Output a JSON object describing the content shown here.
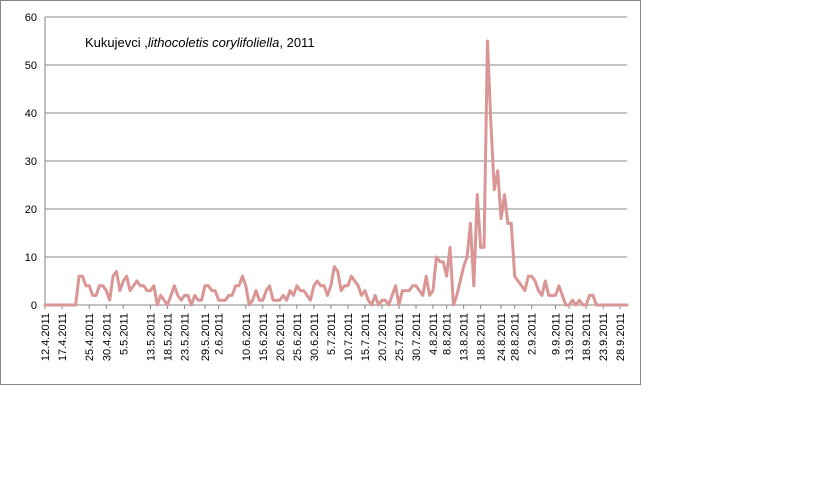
{
  "chart_data": {
    "type": "line",
    "title_parts": [
      {
        "text": "Kukujevci ,",
        "italic": false
      },
      {
        "text": "lithocoletis corylifoliella",
        "italic": true
      },
      {
        "text": ", 2011",
        "italic": false
      }
    ],
    "xlabel": "",
    "ylabel": "",
    "ylim": [
      0,
      60
    ],
    "yticks": [
      0,
      10,
      20,
      30,
      40,
      50,
      60
    ],
    "grid": "horizontal",
    "legend": "none",
    "x_start": "12.4.2011",
    "x_end": "30.9.2011",
    "x_tick_labels": [
      "12.4.2011",
      "17.4.2011",
      "25.4.2011",
      "30.4.2011",
      "5.5.2011",
      "13.5.2011",
      "18.5.2011",
      "23.5.2011",
      "29.5.2011",
      "2.6.2011",
      "10.6.2011",
      "15.6.2011",
      "20.6.2011",
      "25.6.2011",
      "30.6.2011",
      "5.7.2011",
      "10.7.2011",
      "15.7.2011",
      "20.7.2011",
      "25.7.2011",
      "30.7.2011",
      "4.8.2011",
      "8.8.2011",
      "13.8.2011",
      "18.8.2011",
      "24.8.2011",
      "28.8.2011",
      "2.9.2011",
      "9.9.2011",
      "13.9.2011",
      "18.9.2011",
      "23.9.2011",
      "28.9.2011"
    ],
    "series": [
      {
        "color": "#d99694",
        "points": [
          [
            "12.4.2011",
            0
          ],
          [
            "21.4.2011",
            0
          ],
          [
            "22.4.2011",
            6
          ],
          [
            "23.4.2011",
            6
          ],
          [
            "24.4.2011",
            4
          ],
          [
            "25.4.2011",
            4
          ],
          [
            "26.4.2011",
            2
          ],
          [
            "27.4.2011",
            2
          ],
          [
            "28.4.2011",
            4
          ],
          [
            "29.4.2011",
            4
          ],
          [
            "30.4.2011",
            3
          ],
          [
            "1.5.2011",
            1
          ],
          [
            "2.5.2011",
            6
          ],
          [
            "3.5.2011",
            7
          ],
          [
            "4.5.2011",
            3
          ],
          [
            "5.5.2011",
            5
          ],
          [
            "6.5.2011",
            6
          ],
          [
            "7.5.2011",
            3
          ],
          [
            "8.5.2011",
            4
          ],
          [
            "9.5.2011",
            5
          ],
          [
            "10.5.2011",
            4
          ],
          [
            "11.5.2011",
            4
          ],
          [
            "12.5.2011",
            3
          ],
          [
            "13.5.2011",
            3
          ],
          [
            "14.5.2011",
            4
          ],
          [
            "15.5.2011",
            0
          ],
          [
            "16.5.2011",
            2
          ],
          [
            "17.5.2011",
            1
          ],
          [
            "18.5.2011",
            0
          ],
          [
            "19.5.2011",
            2
          ],
          [
            "20.5.2011",
            4
          ],
          [
            "21.5.2011",
            2
          ],
          [
            "22.5.2011",
            1
          ],
          [
            "23.5.2011",
            2
          ],
          [
            "24.5.2011",
            2
          ],
          [
            "25.5.2011",
            0
          ],
          [
            "26.5.2011",
            2
          ],
          [
            "27.5.2011",
            1
          ],
          [
            "28.5.2011",
            1
          ],
          [
            "29.5.2011",
            4
          ],
          [
            "30.5.2011",
            4
          ],
          [
            "31.5.2011",
            3
          ],
          [
            "1.6.2011",
            3
          ],
          [
            "2.6.2011",
            1
          ],
          [
            "3.6.2011",
            1
          ],
          [
            "4.6.2011",
            1
          ],
          [
            "5.6.2011",
            2
          ],
          [
            "6.6.2011",
            2
          ],
          [
            "7.6.2011",
            4
          ],
          [
            "8.6.2011",
            4
          ],
          [
            "9.6.2011",
            6
          ],
          [
            "10.6.2011",
            4
          ],
          [
            "11.6.2011",
            0
          ],
          [
            "12.6.2011",
            1
          ],
          [
            "13.6.2011",
            3
          ],
          [
            "14.6.2011",
            1
          ],
          [
            "15.6.2011",
            1
          ],
          [
            "16.6.2011",
            3
          ],
          [
            "17.6.2011",
            4
          ],
          [
            "18.6.2011",
            1
          ],
          [
            "19.6.2011",
            1
          ],
          [
            "20.6.2011",
            1
          ],
          [
            "21.6.2011",
            2
          ],
          [
            "22.6.2011",
            1
          ],
          [
            "23.6.2011",
            3
          ],
          [
            "24.6.2011",
            2
          ],
          [
            "25.6.2011",
            4
          ],
          [
            "26.6.2011",
            3
          ],
          [
            "27.6.2011",
            3
          ],
          [
            "28.6.2011",
            2
          ],
          [
            "29.6.2011",
            1
          ],
          [
            "30.6.2011",
            4
          ],
          [
            "1.7.2011",
            5
          ],
          [
            "2.7.2011",
            4
          ],
          [
            "3.7.2011",
            4
          ],
          [
            "4.7.2011",
            2
          ],
          [
            "5.7.2011",
            4
          ],
          [
            "6.7.2011",
            8
          ],
          [
            "7.7.2011",
            7
          ],
          [
            "8.7.2011",
            3
          ],
          [
            "9.7.2011",
            4
          ],
          [
            "10.7.2011",
            4
          ],
          [
            "11.7.2011",
            6
          ],
          [
            "12.7.2011",
            5
          ],
          [
            "13.7.2011",
            4
          ],
          [
            "14.7.2011",
            2
          ],
          [
            "15.7.2011",
            3
          ],
          [
            "16.7.2011",
            1
          ],
          [
            "17.7.2011",
            0
          ],
          [
            "18.7.2011",
            2
          ],
          [
            "19.7.2011",
            0
          ],
          [
            "20.7.2011",
            1
          ],
          [
            "21.7.2011",
            1
          ],
          [
            "22.7.2011",
            0
          ],
          [
            "23.7.2011",
            2
          ],
          [
            "24.7.2011",
            4
          ],
          [
            "25.7.2011",
            0
          ],
          [
            "26.7.2011",
            3
          ],
          [
            "27.7.2011",
            3
          ],
          [
            "28.7.2011",
            3
          ],
          [
            "29.7.2011",
            4
          ],
          [
            "30.7.2011",
            4
          ],
          [
            "31.7.2011",
            3
          ],
          [
            "1.8.2011",
            2
          ],
          [
            "2.8.2011",
            6
          ],
          [
            "3.8.2011",
            2
          ],
          [
            "4.8.2011",
            3
          ],
          [
            "5.8.2011",
            10
          ],
          [
            "6.8.2011",
            9
          ],
          [
            "7.8.2011",
            9
          ],
          [
            "8.8.2011",
            6
          ],
          [
            "9.8.2011",
            12
          ],
          [
            "10.8.2011",
            0
          ],
          [
            "11.8.2011",
            2
          ],
          [
            "12.8.2011",
            5
          ],
          [
            "13.8.2011",
            8
          ],
          [
            "14.8.2011",
            10
          ],
          [
            "15.8.2011",
            17
          ],
          [
            "16.8.2011",
            4
          ],
          [
            "17.8.2011",
            23
          ],
          [
            "18.8.2011",
            12
          ],
          [
            "19.8.2011",
            12
          ],
          [
            "20.8.2011",
            55
          ],
          [
            "21.8.2011",
            38
          ],
          [
            "22.8.2011",
            24
          ],
          [
            "23.8.2011",
            28
          ],
          [
            "24.8.2011",
            18
          ],
          [
            "25.8.2011",
            23
          ],
          [
            "26.8.2011",
            17
          ],
          [
            "27.8.2011",
            17
          ],
          [
            "28.8.2011",
            6
          ],
          [
            "29.8.2011",
            5
          ],
          [
            "30.8.2011",
            4
          ],
          [
            "31.8.2011",
            3
          ],
          [
            "1.9.2011",
            6
          ],
          [
            "2.9.2011",
            6
          ],
          [
            "3.9.2011",
            5
          ],
          [
            "4.9.2011",
            3
          ],
          [
            "5.9.2011",
            2
          ],
          [
            "6.9.2011",
            5
          ],
          [
            "7.9.2011",
            2
          ],
          [
            "8.9.2011",
            2
          ],
          [
            "9.9.2011",
            2
          ],
          [
            "10.9.2011",
            4
          ],
          [
            "11.9.2011",
            2
          ],
          [
            "12.9.2011",
            0
          ],
          [
            "13.9.2011",
            0
          ],
          [
            "14.9.2011",
            1
          ],
          [
            "15.9.2011",
            0
          ],
          [
            "16.9.2011",
            1
          ],
          [
            "17.9.2011",
            0
          ],
          [
            "18.9.2011",
            0
          ],
          [
            "19.9.2011",
            2
          ],
          [
            "20.9.2011",
            2
          ],
          [
            "21.9.2011",
            0
          ],
          [
            "30.9.2011",
            0
          ]
        ]
      }
    ]
  }
}
